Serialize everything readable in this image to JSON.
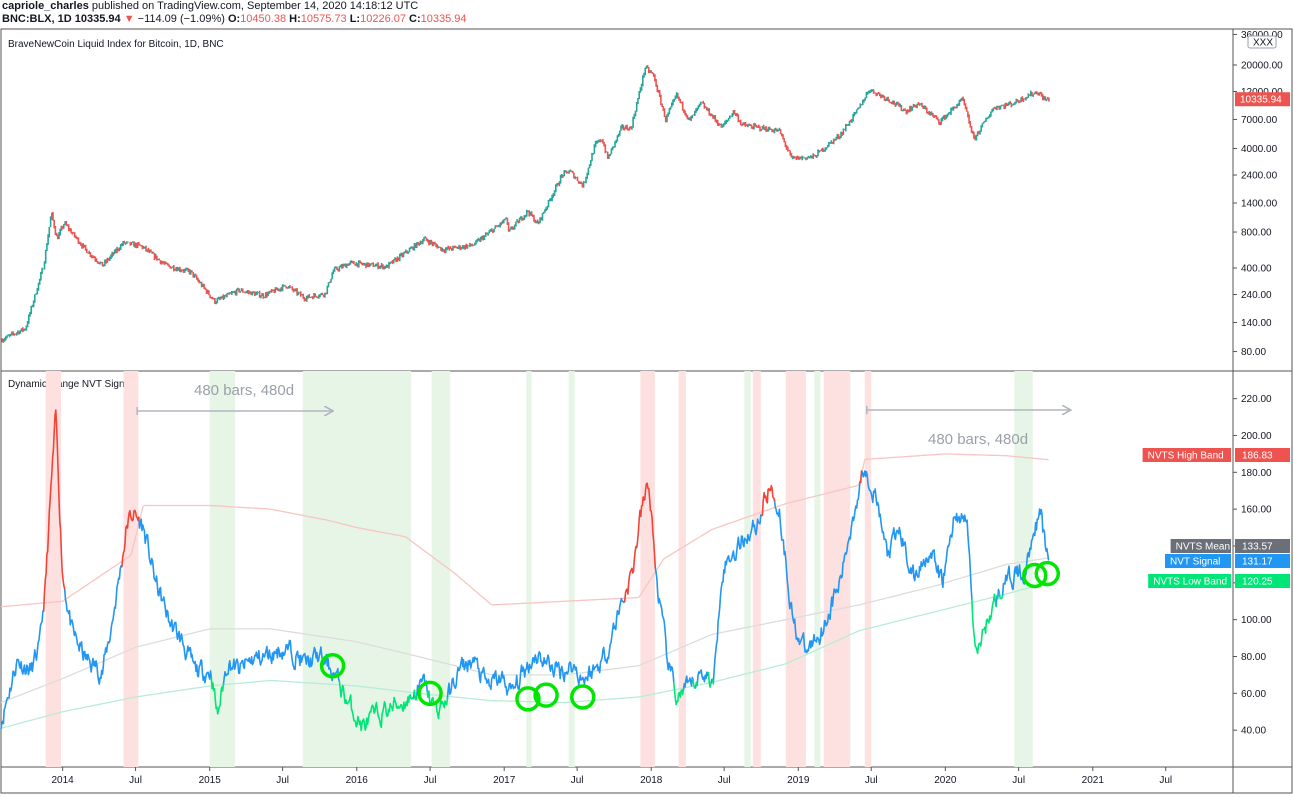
{
  "header": {
    "author": "capriole_charles",
    "published": "published on TradingView.com, September 14, 2020 14:18:12 UTC",
    "symbol": "BNC:BLX, 1D",
    "last": "10335.94",
    "change_arrow": "▼",
    "change": "−114.09 (−1.09%)",
    "o_label": "O:",
    "o": "10450.38",
    "h_label": "H:",
    "h": "10575.73",
    "l_label": "L:",
    "l": "10226.07",
    "c_label": "C:",
    "c": "10335.94"
  },
  "colors": {
    "candle_up": "#26a69a",
    "candle_down": "#ef5350",
    "nvt_blue": "#2196f3",
    "nvt_red": "#f44336",
    "nvt_green": "#00e676",
    "high_band": "#f7c6c1",
    "low_band": "#b8ecd7",
    "mean_band": "#dcdcdc",
    "shade_red": "#fde1e1",
    "shade_green": "#e6f5e6",
    "circle": "#00e600",
    "arrow": "#b2b5be"
  },
  "chart_data": [
    {
      "type": "line",
      "title": "BraveNewCoin Liquid Index for Bitcoin, 1D, BNC",
      "scale": "log",
      "ylim": [
        55,
        40000
      ],
      "xlim": [
        "2013-08-01",
        "2021-12-15"
      ],
      "x_ticks": [
        "2014",
        "Jul",
        "2015",
        "Jul",
        "2016",
        "Jul",
        "2017",
        "Jul",
        "2018",
        "Jul",
        "2019",
        "Jul",
        "2020",
        "Jul",
        "2021",
        "Jul"
      ],
      "y_ticks": [
        "36000.00",
        "20000.00",
        "12000.00",
        "7000.00",
        "4000.00",
        "2400.00",
        "1400.00",
        "800.00",
        "400.00",
        "240.00",
        "140.00",
        "80.00"
      ],
      "badge": "XXX",
      "last_value_label": "10335.94",
      "series": [
        {
          "x": [
            "2013-08-01",
            "2013-10-01",
            "2013-11-15",
            "2013-12-04",
            "2013-12-18",
            "2014-01-05",
            "2014-02-25",
            "2014-04-10",
            "2014-06-01",
            "2014-07-15",
            "2014-09-15",
            "2014-11-15",
            "2015-01-14",
            "2015-03-15",
            "2015-05-15",
            "2015-07-10",
            "2015-08-25",
            "2015-10-15",
            "2015-11-04",
            "2015-12-15",
            "2016-03-15",
            "2016-06-17",
            "2016-08-02",
            "2016-10-15",
            "2016-12-31",
            "2017-01-05",
            "2017-01-12",
            "2017-03-01",
            "2017-03-25",
            "2017-05-25",
            "2017-06-12",
            "2017-07-16",
            "2017-08-15",
            "2017-09-01",
            "2017-09-15",
            "2017-10-20",
            "2017-11-12",
            "2017-12-17",
            "2018-01-06",
            "2018-02-06",
            "2018-03-05",
            "2018-04-06",
            "2018-05-05",
            "2018-06-25",
            "2018-07-25",
            "2018-08-14",
            "2018-11-15",
            "2018-12-15",
            "2019-02-08",
            "2019-04-15",
            "2019-05-30",
            "2019-06-26",
            "2019-08-15",
            "2019-09-25",
            "2019-10-26",
            "2019-12-18",
            "2020-02-13",
            "2020-03-12",
            "2020-04-30",
            "2020-06-15",
            "2020-07-27",
            "2020-08-17",
            "2020-09-05",
            "2020-09-14"
          ],
          "y": [
            100,
            125,
            420,
            1150,
            700,
            950,
            580,
            420,
            650,
            610,
            420,
            370,
            210,
            260,
            235,
            285,
            225,
            245,
            380,
            440,
            410,
            700,
            570,
            620,
            980,
            1080,
            800,
            1200,
            930,
            2400,
            2600,
            1950,
            4300,
            4800,
            3300,
            6000,
            5900,
            19000,
            16500,
            7000,
            11200,
            6800,
            9600,
            6000,
            8200,
            6300,
            5600,
            3300,
            3400,
            5200,
            8500,
            12500,
            10200,
            8200,
            9500,
            6700,
            10300,
            4800,
            8800,
            9500,
            11200,
            11900,
            10200,
            10336
          ]
        }
      ]
    },
    {
      "type": "line",
      "title": "Dynamic Range NVT Signal",
      "ylim": [
        20,
        235
      ],
      "y_ticks": [
        "220.00",
        "200.00",
        "180.00",
        "160.00",
        "140.00",
        "120.00",
        "100.00",
        "80.00",
        "60.00",
        "40.00"
      ],
      "annotations": [
        "480 bars, 480d",
        "480 bars, 480d"
      ],
      "series": [
        {
          "name": "NVT Signal",
          "value_label": "131.17",
          "x": [
            "2013-08-01",
            "2013-09-10",
            "2013-10-15",
            "2013-11-05",
            "2013-11-20",
            "2013-12-03",
            "2013-12-15",
            "2014-01-01",
            "2014-01-25",
            "2014-03-01",
            "2014-04-10",
            "2014-05-01",
            "2014-05-25",
            "2014-06-10",
            "2014-06-25",
            "2014-07-20",
            "2014-08-20",
            "2014-09-25",
            "2014-10-25",
            "2014-11-25",
            "2015-01-05",
            "2015-01-20",
            "2015-02-15",
            "2015-03-15",
            "2015-04-15",
            "2015-05-20",
            "2015-06-25",
            "2015-08-01",
            "2015-08-25",
            "2015-10-01",
            "2015-11-04",
            "2015-12-10",
            "2016-01-15",
            "2016-02-20",
            "2016-03-25",
            "2016-05-01",
            "2016-06-17",
            "2016-07-15",
            "2016-08-15",
            "2016-09-10",
            "2016-10-15",
            "2016-11-20",
            "2016-12-25",
            "2017-01-20",
            "2017-02-20",
            "2017-03-20",
            "2017-04-20",
            "2017-05-20",
            "2017-06-20",
            "2017-07-15",
            "2017-08-20",
            "2017-09-15",
            "2017-10-20",
            "2017-11-15",
            "2017-12-05",
            "2017-12-25",
            "2018-01-15",
            "2018-02-10",
            "2018-03-05",
            "2018-04-05",
            "2018-05-10",
            "2018-06-05",
            "2018-06-25",
            "2018-07-20",
            "2018-08-20",
            "2018-09-20",
            "2018-10-20",
            "2018-11-15",
            "2018-12-20",
            "2019-01-20",
            "2019-03-01",
            "2019-04-15",
            "2019-05-20",
            "2019-06-15",
            "2019-07-10",
            "2019-08-10",
            "2019-09-10",
            "2019-10-15",
            "2019-11-20",
            "2019-12-25",
            "2020-01-25",
            "2020-02-25",
            "2020-03-15",
            "2020-04-15",
            "2020-05-20",
            "2020-06-25",
            "2020-07-20",
            "2020-08-05",
            "2020-08-25",
            "2020-09-05",
            "2020-09-14"
          ],
          "y": [
            45,
            78,
            72,
            85,
            120,
            170,
            210,
            125,
            92,
            78,
            72,
            95,
            128,
            152,
            158,
            150,
            120,
            98,
            88,
            72,
            72,
            48,
            78,
            72,
            78,
            80,
            84,
            82,
            76,
            80,
            72,
            55,
            42,
            48,
            52,
            56,
            65,
            50,
            58,
            72,
            78,
            64,
            68,
            60,
            72,
            82,
            76,
            72,
            75,
            68,
            74,
            84,
            110,
            125,
            155,
            175,
            120,
            78,
            58,
            62,
            72,
            65,
            128,
            135,
            145,
            152,
            172,
            160,
            98,
            82,
            95,
            120,
            160,
            185,
            168,
            135,
            148,
            122,
            138,
            120,
            158,
            152,
            80,
            100,
            118,
            125,
            126,
            150,
            156,
            140,
            131.17
          ]
        },
        {
          "name": "NVTS High Band",
          "value_label": "186.83",
          "x": [
            "2013-08-01",
            "2014-01-01",
            "2014-06-20",
            "2014-07-20",
            "2015-01-01",
            "2015-06-01",
            "2015-10-20",
            "2016-01-01",
            "2016-05-01",
            "2016-09-01",
            "2016-12-01",
            "2017-06-01",
            "2017-12-01",
            "2018-02-01",
            "2018-06-01",
            "2018-12-01",
            "2019-06-01",
            "2019-06-15",
            "2020-01-01",
            "2020-06-01",
            "2020-09-14"
          ],
          "y": [
            107,
            110,
            135,
            162,
            162,
            160,
            154,
            150,
            145,
            125,
            108,
            110,
            112,
            133,
            149,
            163,
            173,
            187,
            190,
            189,
            186.83
          ]
        },
        {
          "name": "NVTS Mean",
          "value_label": "133.57",
          "x": [
            "2013-08-01",
            "2014-01-01",
            "2014-07-01",
            "2015-01-01",
            "2015-06-01",
            "2016-01-01",
            "2016-06-01",
            "2016-12-01",
            "2017-06-01",
            "2017-12-01",
            "2018-06-01",
            "2018-12-01",
            "2019-06-01",
            "2019-12-01",
            "2020-06-01",
            "2020-09-14"
          ],
          "y": [
            55,
            68,
            85,
            95,
            95,
            88,
            80,
            70,
            70,
            75,
            92,
            100,
            108,
            118,
            130,
            133.57
          ]
        },
        {
          "name": "NVTS Low Band",
          "value_label": "120.25",
          "x": [
            "2013-08-01",
            "2014-01-01",
            "2014-07-01",
            "2015-01-01",
            "2015-06-01",
            "2016-01-01",
            "2016-06-01",
            "2016-12-01",
            "2017-06-01",
            "2017-12-01",
            "2018-06-01",
            "2018-12-01",
            "2019-06-01",
            "2019-12-01",
            "2020-06-01",
            "2020-09-14"
          ],
          "y": [
            41,
            50,
            58,
            64,
            67,
            64,
            60,
            56,
            55,
            58,
            66,
            76,
            94,
            104,
            114,
            120.25
          ]
        }
      ],
      "shaded_red": [
        [
          "2013-11-20",
          "2013-12-28"
        ],
        [
          "2014-06-01",
          "2014-07-08"
        ],
        [
          "2017-12-05",
          "2018-01-10"
        ],
        [
          "2018-03-10",
          "2018-03-28"
        ],
        [
          "2018-09-10",
          "2018-09-30"
        ],
        [
          "2018-12-01",
          "2019-01-20"
        ],
        [
          "2019-03-05",
          "2019-05-10"
        ],
        [
          "2019-06-15",
          "2019-07-01"
        ]
      ],
      "shaded_green": [
        [
          "2015-01-01",
          "2015-03-05"
        ],
        [
          "2015-08-20",
          "2016-05-15"
        ],
        [
          "2016-07-05",
          "2016-08-20"
        ],
        [
          "2017-02-25",
          "2017-03-10"
        ],
        [
          "2017-06-10",
          "2017-06-25"
        ],
        [
          "2018-08-20",
          "2018-09-05"
        ],
        [
          "2019-02-10",
          "2019-02-25"
        ],
        [
          "2020-06-20",
          "2020-08-05"
        ]
      ],
      "arrows": [
        [
          "2014-07-05",
          "2015-11-01"
        ],
        [
          "2019-06-20",
          "2020-11-05"
        ]
      ],
      "circles": [
        [
          "2015-11-02",
          75
        ],
        [
          "2016-07-01",
          60
        ],
        [
          "2017-03-01",
          57
        ],
        [
          "2017-04-15",
          59
        ],
        [
          "2017-07-15",
          58
        ],
        [
          "2020-08-10",
          124
        ],
        [
          "2020-09-10",
          125
        ]
      ]
    }
  ]
}
